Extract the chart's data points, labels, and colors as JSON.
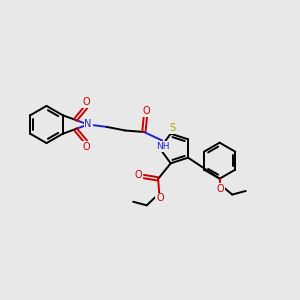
{
  "bg_color": "#e8e8e8",
  "bond_color": "#000000",
  "n_color": "#2222cc",
  "o_color": "#cc0000",
  "s_color": "#aaaa00",
  "lw": 1.4,
  "fig_w": 3.0,
  "fig_h": 3.0,
  "dpi": 100,
  "xlim": [
    0,
    10
  ],
  "ylim": [
    0,
    10
  ],
  "font_size": 7.0
}
